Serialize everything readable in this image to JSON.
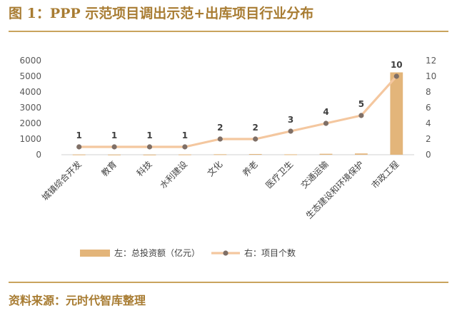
{
  "header": {
    "title": "图 1：PPP 示范项目调出示范+出库项目行业分布"
  },
  "footer": {
    "source": "资料来源：元时代智库整理"
  },
  "colors": {
    "bar": "#e3b57a",
    "line": "#f4c79f",
    "marker": "#7f6f66",
    "accent": "#a87c32",
    "rule": "#c9a45d"
  },
  "chart_data": {
    "type": "bar",
    "categories": [
      "城镇综合开发",
      "教育",
      "科技",
      "水利建设",
      "文化",
      "养老",
      "医疗卫生",
      "交通运输",
      "生态建设和环境保护",
      "市政工程"
    ],
    "series": [
      {
        "name": "左：总投资额（亿元）",
        "type": "bar",
        "axis": "left",
        "values": [
          15,
          10,
          8,
          18,
          30,
          45,
          25,
          60,
          80,
          5250
        ]
      },
      {
        "name": "右：项目个数",
        "type": "line",
        "axis": "right",
        "values": [
          1,
          1,
          1,
          1,
          2,
          2,
          3,
          4,
          5,
          10
        ]
      }
    ],
    "data_labels": [
      "1",
      "1",
      "1",
      "1",
      "2",
      "2",
      "3",
      "4",
      "5",
      "10"
    ],
    "y_left": {
      "ylim": [
        0,
        6000
      ],
      "ticks": [
        "0",
        "1000",
        "2000",
        "3000",
        "4000",
        "5000",
        "6000"
      ]
    },
    "y_right": {
      "ylim": [
        0,
        12
      ],
      "ticks": [
        "0",
        "2",
        "4",
        "6",
        "8",
        "10",
        "12"
      ]
    },
    "grid": false,
    "legend_position": "bottom"
  }
}
